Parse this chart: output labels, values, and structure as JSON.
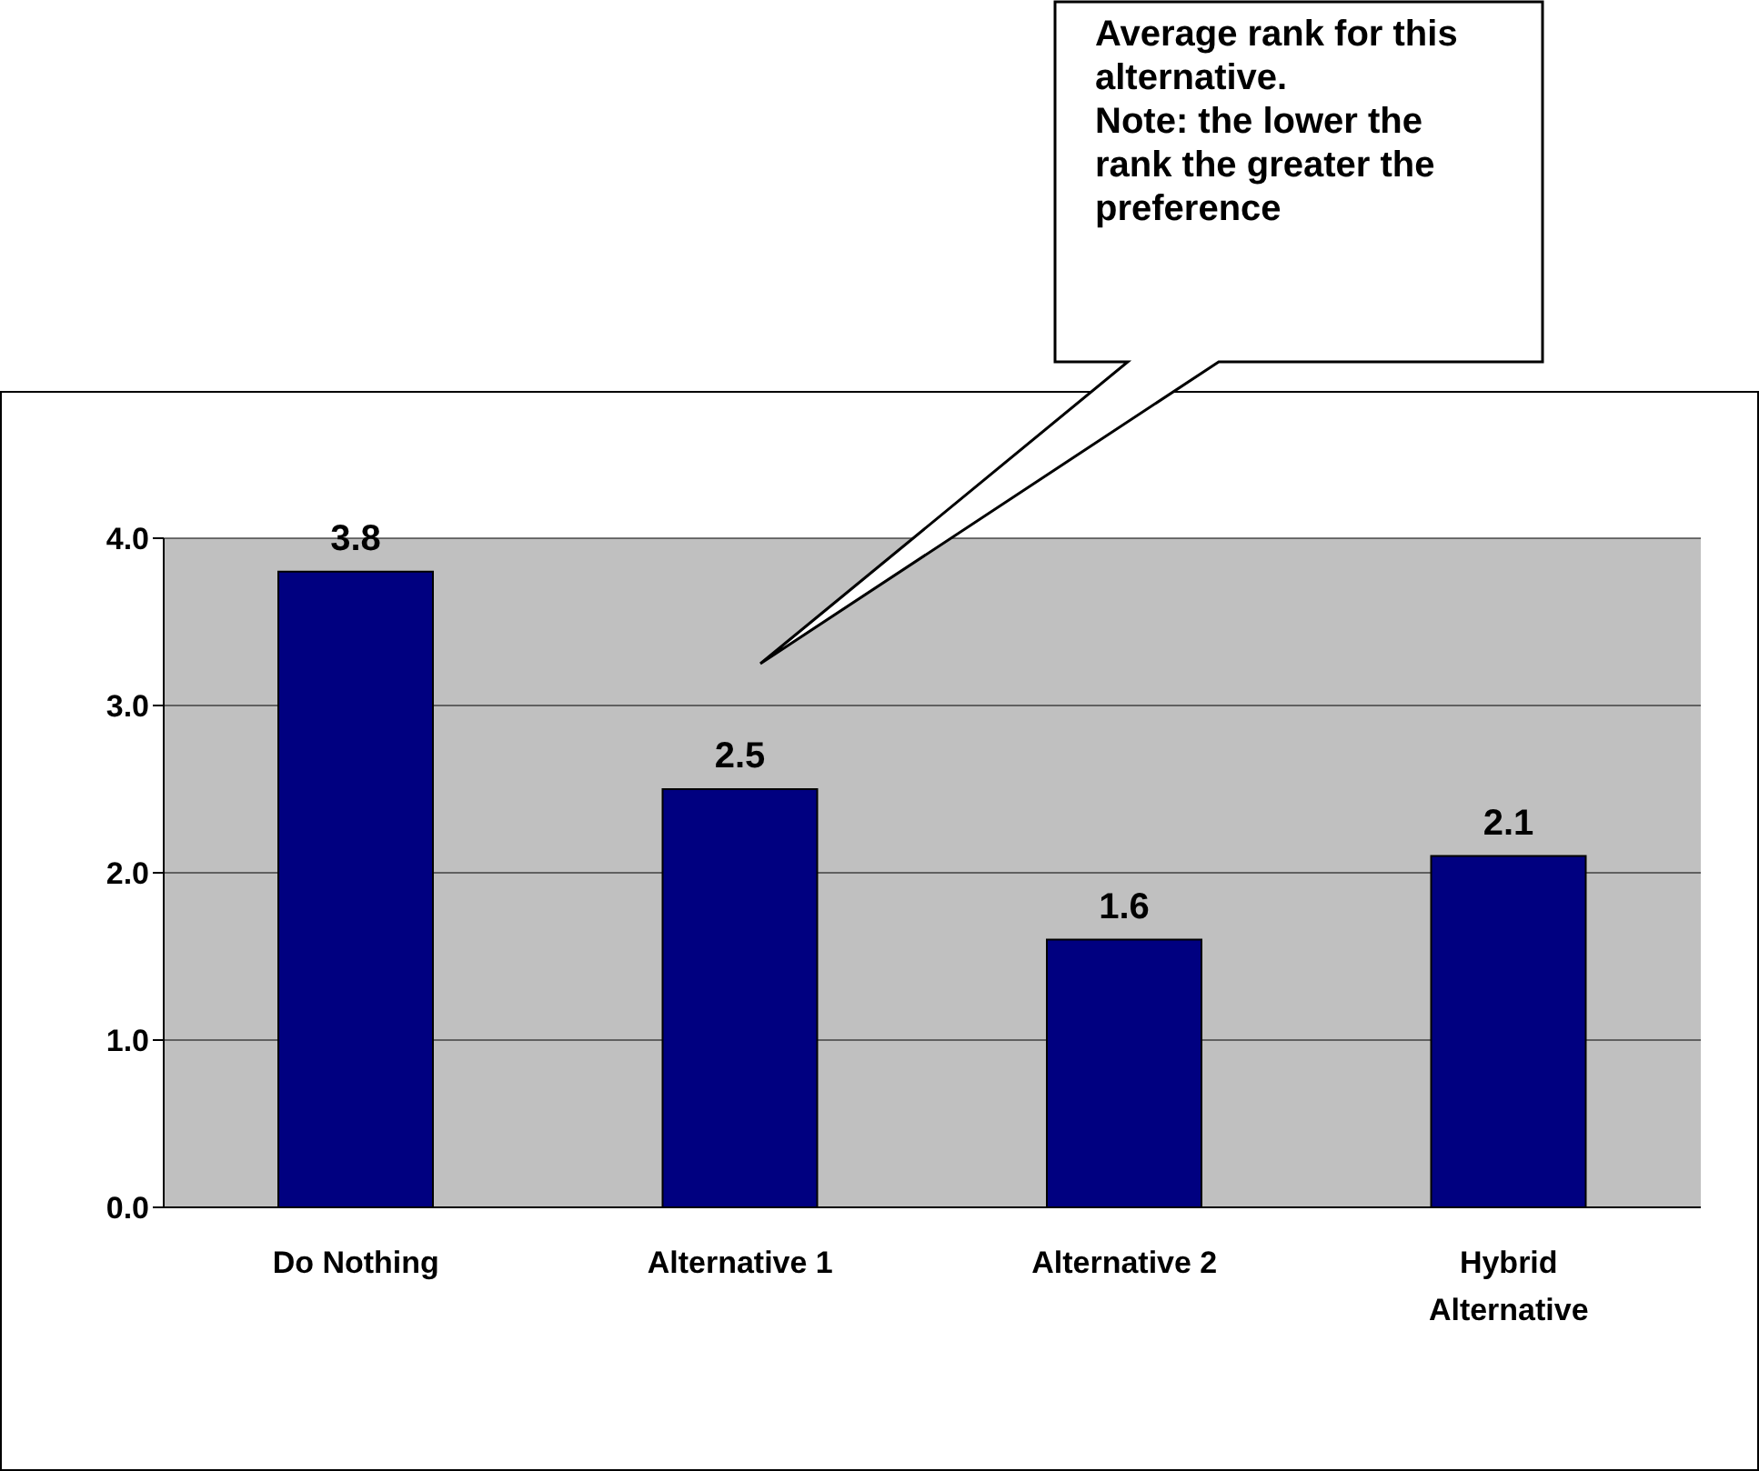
{
  "chart_data": {
    "type": "bar",
    "categories": [
      "Do Nothing",
      "Alternative 1",
      "Alternative 2",
      "Hybrid Alternative"
    ],
    "values": [
      3.8,
      2.5,
      1.6,
      2.1
    ],
    "color": "#000080",
    "ylim": [
      0,
      4
    ],
    "yticks": [
      {
        "value": 0,
        "label": "0.0"
      },
      {
        "value": 1,
        "label": "1.0"
      },
      {
        "value": 2,
        "label": "2.0"
      },
      {
        "value": 3,
        "label": "3.0"
      },
      {
        "value": 4,
        "label": "4.0"
      }
    ],
    "grid": "y",
    "data_labels": true,
    "legend": false,
    "annotations": [
      "Average rank for this alternative.\nNote: the lower the rank the greater the preference"
    ]
  }
}
